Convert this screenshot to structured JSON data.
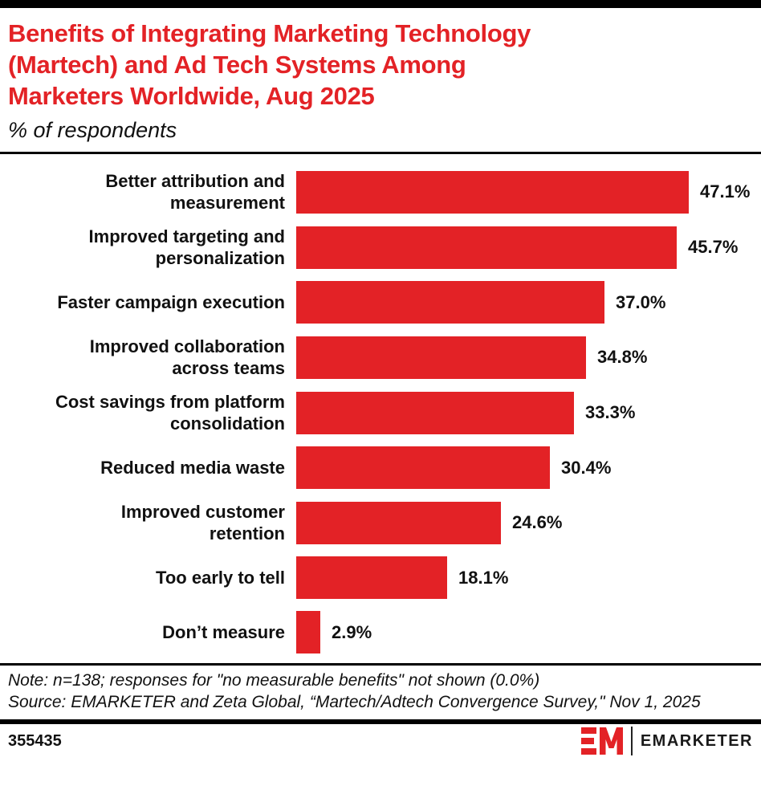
{
  "brand_red": "#e32226",
  "header": {
    "title_lines": [
      "Benefits of Integrating Marketing Technology",
      "(Martech) and Ad Tech Systems Among",
      "Marketers Worldwide, Aug 2025"
    ],
    "subtitle": "% of respondents"
  },
  "chart_data": {
    "type": "bar",
    "orientation": "horizontal",
    "title": "Benefits of Integrating Marketing Technology (Martech) and Ad Tech Systems Among Marketers Worldwide, Aug 2025",
    "subtitle": "% of respondents",
    "categories": [
      "Better attribution and measurement",
      "Improved targeting and personalization",
      "Faster campaign execution",
      "Improved collaboration across teams",
      "Cost savings from platform consolidation",
      "Reduced media waste",
      "Improved customer retention",
      "Too early to tell",
      "Don’t measure"
    ],
    "category_lines": [
      [
        "Better attribution and",
        "measurement"
      ],
      [
        "Improved targeting and",
        "personalization"
      ],
      [
        "Faster campaign execution"
      ],
      [
        "Improved collaboration",
        "across teams"
      ],
      [
        "Cost savings from platform",
        "consolidation"
      ],
      [
        "Reduced media waste"
      ],
      [
        "Improved customer",
        "retention"
      ],
      [
        "Too early to tell"
      ],
      [
        "Don’t measure"
      ]
    ],
    "values": [
      47.1,
      45.7,
      37.0,
      34.8,
      33.3,
      30.4,
      24.6,
      18.1,
      2.9
    ],
    "value_labels": [
      "47.1%",
      "45.7%",
      "37.0%",
      "34.8%",
      "33.3%",
      "30.4%",
      "24.6%",
      "18.1%",
      "2.9%"
    ],
    "bar_color": "#e32226",
    "xlim": [
      0,
      55
    ],
    "grid": false,
    "legend": "none",
    "value_label_position": "end-of-bar"
  },
  "footnote": {
    "note": "Note: n=138; responses for \"no measurable benefits\" not shown (0.0%)",
    "source": "Source: EMARKETER and Zeta Global, “Martech/Adtech Convergence Survey,\" Nov 1, 2025"
  },
  "footer": {
    "chart_id": "355435",
    "brand": "EMARKETER",
    "monogram": "EM"
  }
}
